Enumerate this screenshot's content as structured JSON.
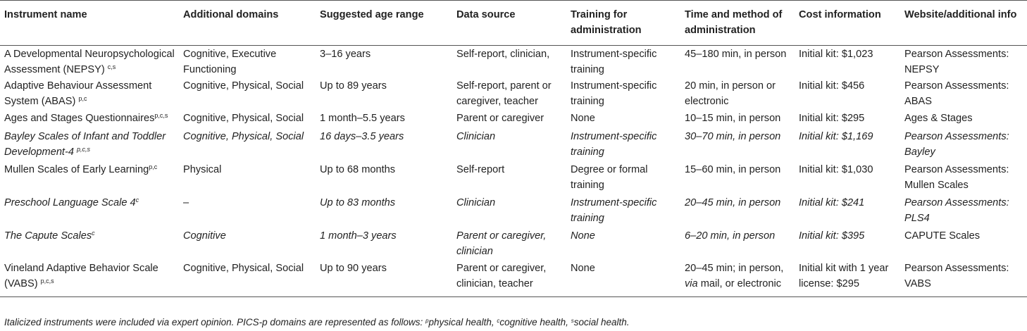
{
  "headers": [
    "Instrument name",
    "Additional domains",
    "Suggested age range",
    "Data source",
    "Training for administration",
    "Time and method of administration",
    "Cost information",
    "Website/additional info"
  ],
  "rows": [
    {
      "name": "A Developmental Neuropsychological Assessment (NEPSY)",
      "sup": "c,s",
      "domains": "Cognitive, Executive Functioning",
      "age": "3–16 years",
      "source": "Self-report, clinician,",
      "training": "Instrument-specific training",
      "time": "45–180 min, in person",
      "cost": "Initial kit: $1,023",
      "website": "Pearson Assessments: NEPSY"
    },
    {
      "name": "Adaptive Behaviour Assessment System (ABAS)",
      "sup": "p,c",
      "domains": "Cognitive, Physical, Social",
      "age": "Up to 89 years",
      "source": "Self-report, parent or caregiver, teacher",
      "training": "Instrument-specific training",
      "time": "20 min, in person or electronic",
      "cost": "Initial kit: $456",
      "website": "Pearson Assessments: ABAS"
    },
    {
      "name": "Ages and Stages Questionnaires",
      "sup": "p,c,s",
      "domains": "Cognitive, Physical, Social",
      "age": "1 month–5.5 years",
      "source": "Parent or caregiver",
      "training": "None",
      "time": "10–15 min, in person",
      "cost": "Initial kit: $295",
      "website": "Ages & Stages"
    },
    {
      "name": "Bayley Scales of Infant and Toddler Development-4",
      "sup": "p,c,s",
      "domains": "Cognitive, Physical, Social",
      "age": "16 days–3.5 years",
      "source": "Clinician",
      "training": "Instrument-specific training",
      "time": "30–70 min, in person",
      "cost": "Initial kit: $1,169",
      "website": "Pearson Assessments: Bayley"
    },
    {
      "name": "Mullen Scales of Early Learning",
      "sup": "p,c",
      "domains": "Physical",
      "age": "Up to 68 months",
      "source": "Self-report",
      "training": "Degree or formal training",
      "time": "15–60 min, in person",
      "cost": "Initial kit: $1,030",
      "website": "Pearson Assessments: Mullen Scales"
    },
    {
      "name": "Preschool Language Scale 4",
      "sup": "c",
      "domains": "–",
      "age": "Up to 83 months",
      "source": "Clinician",
      "training": "Instrument-specific training",
      "time": "20–45 min, in person",
      "cost": "Initial kit: $241",
      "website": "Pearson Assessments: PLS4"
    },
    {
      "name": "The Capute Scales",
      "sup": "c",
      "domains": "Cognitive",
      "age": "1 month–3 years",
      "source": "Parent or caregiver, clinician",
      "training": "None",
      "time": "6–20 min, in person",
      "cost": "Initial kit: $395",
      "website": "CAPUTE Scales"
    },
    {
      "name": "Vineland Adaptive Behavior Scale (VABS)",
      "sup": "p,c,s",
      "domains": "Cognitive, Physical, Social",
      "age": "Up to 90 years",
      "source": "Parent or caregiver, clinician, teacher",
      "training": "None",
      "time_pre": "20–45 min; in person,",
      "time_via": "via",
      "time_post": "mail, or electronic",
      "cost": "Initial kit with 1 year license: $295",
      "website": "Pearson Assessments: VABS"
    }
  ],
  "footnote": {
    "intro": "Italicized instruments were included via expert opinion. PICS-p domains are represented as follows:",
    "p_sup": "p",
    "p_text": "physical health,",
    "c_sup": "c",
    "c_text": "cognitive health,",
    "s_sup": "s",
    "s_text": "social health."
  }
}
